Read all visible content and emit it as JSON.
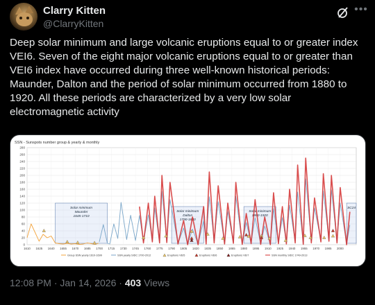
{
  "author": {
    "name": "Clarry Kitten",
    "handle": "@ClarryKitten"
  },
  "tweet": {
    "text": "Deep solar minimum and large volcanic eruptions equal to or greater index VEI6. Seven of the eight major volcanic eruptions equal to or greater than VEI6 index have occurred during three well-known historical periods: Maunder, Dalton and the period of solar minimum occurred from 1880 to 1920. All these periods are characterized by a very low solar electromagnetic activity"
  },
  "meta": {
    "time": "12:08 PM",
    "separator": "·",
    "date": "Jan 14, 2026",
    "views_count": "403",
    "views_label": "Views"
  },
  "icons": {
    "grok": "grok-icon",
    "more": "more-icon"
  },
  "chart_data": {
    "type": "line",
    "title": "SSN - Sunspots number group & yearly & monthly",
    "xlabel": "",
    "ylabel": "",
    "ylim": [
      0,
      280
    ],
    "xlim": [
      1610,
      2020
    ],
    "yticks": [
      0,
      20,
      40,
      60,
      80,
      100,
      120,
      140,
      160,
      180,
      200,
      220,
      240,
      260,
      280
    ],
    "xticks": [
      1610,
      1625,
      1640,
      1655,
      1670,
      1685,
      1700,
      1715,
      1730,
      1745,
      1760,
      1775,
      1790,
      1805,
      1820,
      1835,
      1850,
      1865,
      1880,
      1895,
      1910,
      1925,
      1940,
      1955,
      1970,
      1985,
      2000
    ],
    "grid": true,
    "legend_position": "bottom",
    "annotations": [
      {
        "text": "Solar minimum Maunder 1645-1710",
        "x_start": 1645,
        "x_end": 1710
      },
      {
        "text": "Solar minimum Dalton 1790-1830",
        "x_start": 1790,
        "x_end": 1830
      },
      {
        "text": "Solar minimum 1880-1920",
        "x_start": 1880,
        "x_end": 1920
      },
      {
        "text": "SC24",
        "x_start": 2008,
        "x_end": 2020
      }
    ],
    "series": [
      {
        "name": "Group SSN yearly 1610-1699",
        "color": "#f3a33b",
        "x": [
          1610,
          1615,
          1620,
          1625,
          1630,
          1635,
          1640,
          1645,
          1650,
          1655,
          1660,
          1665,
          1670,
          1675,
          1680,
          1685,
          1690,
          1695,
          1699
        ],
        "values": [
          20,
          60,
          35,
          10,
          30,
          20,
          25,
          5,
          3,
          2,
          4,
          2,
          3,
          1,
          2,
          5,
          3,
          1,
          4
        ]
      },
      {
        "name": "SSN yearly SIDC 1700-2012",
        "color": "#7aa6c9",
        "x": [
          1700,
          1705,
          1710,
          1713,
          1718,
          1723,
          1727,
          1734,
          1739,
          1745,
          1750,
          1755,
          1761,
          1766,
          1769,
          1775,
          1778,
          1784,
          1788,
          1798,
          1805,
          1810,
          1816,
          1823,
          1830,
          1833,
          1837,
          1843,
          1848,
          1856,
          1860,
          1867,
          1870,
          1878,
          1883,
          1889,
          1894,
          1901,
          1906,
          1913,
          1917,
          1923,
          1928,
          1933,
          1937,
          1944,
          1947,
          1954,
          1957,
          1964,
          1968,
          1976,
          1979,
          1986,
          1989,
          1996,
          2000,
          2008,
          2012
        ],
        "values": [
          8,
          58,
          4,
          2,
          60,
          18,
          122,
          15,
          85,
          12,
          84,
          9,
          86,
          11,
          106,
          7,
          154,
          10,
          130,
          4,
          48,
          1,
          45,
          2,
          70,
          8,
          138,
          10,
          124,
          4,
          96,
          7,
          139,
          3,
          64,
          6,
          78,
          3,
          54,
          1,
          104,
          6,
          78,
          6,
          114,
          10,
          152,
          4,
          190,
          10,
          106,
          13,
          155,
          14,
          158,
          9,
          120,
          3,
          57
        ]
      },
      {
        "name": "SSN monthly SIDC 1749-2013",
        "color": "#d32f2f",
        "x": [
          1750,
          1755,
          1761,
          1766,
          1769,
          1775,
          1778,
          1784,
          1788,
          1798,
          1805,
          1810,
          1816,
          1823,
          1830,
          1833,
          1837,
          1843,
          1848,
          1856,
          1860,
          1867,
          1870,
          1878,
          1883,
          1889,
          1894,
          1901,
          1906,
          1913,
          1917,
          1923,
          1928,
          1933,
          1937,
          1944,
          1947,
          1954,
          1957,
          1964,
          1968,
          1976,
          1979,
          1986,
          1989,
          1996,
          2000,
          2008,
          2012
        ],
        "values": [
          110,
          5,
          120,
          8,
          140,
          5,
          200,
          6,
          180,
          2,
          70,
          0,
          80,
          0,
          110,
          2,
          210,
          5,
          170,
          2,
          120,
          4,
          180,
          1,
          90,
          3,
          130,
          1,
          80,
          0,
          150,
          3,
          110,
          2,
          160,
          5,
          230,
          1,
          250,
          5,
          135,
          8,
          205,
          10,
          200,
          5,
          165,
          0,
          95
        ]
      },
      {
        "name": "Eruptions VEI5",
        "color": "#e9c46a",
        "marker": "triangle",
        "x": [
          1631,
          1660,
          1673,
          1694,
          1755,
          1783,
          1815,
          1835,
          1854,
          1875,
          1886,
          1902,
          1912,
          1932,
          1956,
          1963,
          1980,
          1991
        ],
        "values": [
          40,
          8,
          6,
          5,
          20,
          25,
          38,
          30,
          18,
          22,
          24,
          25,
          18,
          12,
          26,
          20,
          20,
          25
        ]
      },
      {
        "name": "Eruptions VEI6",
        "color": "#c0392b",
        "marker": "triangle",
        "x": [
          1815,
          1883,
          1902,
          1991
        ],
        "values": [
          18,
          28,
          20,
          40
        ]
      },
      {
        "name": "Eruptions VEI7",
        "color": "#7b1f1f",
        "marker": "triangle",
        "x": [
          1815
        ],
        "values": [
          12
        ]
      }
    ],
    "legend": [
      "Group SSN yearly 1610-1699",
      "SSN yearly SIDC 1700-2012",
      "Eruptions VEI5",
      "Eruptions VEI6",
      "Eruptions VEI7",
      "SSN monthly SIDC 1749-2013"
    ]
  }
}
